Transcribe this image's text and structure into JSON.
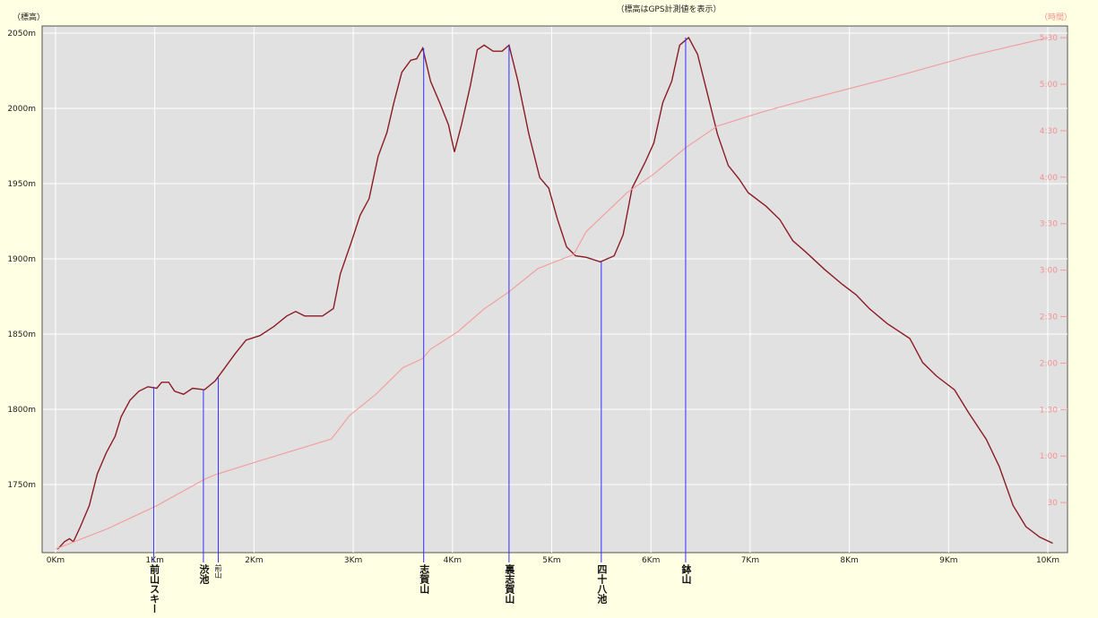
{
  "chart_data": {
    "type": "line",
    "title": "（標高はGPS計測値を表示）",
    "ylabel": "（標高）",
    "y2label": "（時間）",
    "xlim": [
      0,
      10.2
    ],
    "ylim": [
      1706,
      2055
    ],
    "y2lim": [
      0,
      340
    ],
    "grid": true,
    "x_ticks": [
      "0Km",
      "1Km",
      "2Km",
      "3Km",
      "4Km",
      "5Km",
      "6Km",
      "7Km",
      "8Km",
      "9Km",
      "10Km"
    ],
    "y_ticks": [
      {
        "value": 1750,
        "label": "1750m"
      },
      {
        "value": 1800,
        "label": "1800m"
      },
      {
        "value": 1850,
        "label": "1850m"
      },
      {
        "value": 1900,
        "label": "1900m"
      },
      {
        "value": 1950,
        "label": "1950m"
      },
      {
        "value": 2000,
        "label": "2000m"
      },
      {
        "value": 2050,
        "label": "2050m"
      }
    ],
    "y2_ticks": [
      {
        "value": 30,
        "label": "30"
      },
      {
        "value": 60,
        "label": "1:00"
      },
      {
        "value": 90,
        "label": "1:30"
      },
      {
        "value": 120,
        "label": "2:00"
      },
      {
        "value": 150,
        "label": "2:30"
      },
      {
        "value": 180,
        "label": "3:00"
      },
      {
        "value": 210,
        "label": "3:30"
      },
      {
        "value": 240,
        "label": "4:00"
      },
      {
        "value": 270,
        "label": "4:30"
      },
      {
        "value": 300,
        "label": "5:00"
      },
      {
        "value": 330,
        "label": "5:30"
      }
    ],
    "colors": {
      "elevation": "#8b1c24",
      "time": "#f49a9a",
      "marker": "#3030ff",
      "plot_bg": "#e1e1e1",
      "grid": "#ffffff"
    },
    "series": [
      {
        "axis": "left",
        "x": [
          0.02,
          0.09,
          0.14,
          0.18,
          0.25,
          0.34,
          0.42,
          0.51,
          0.6,
          0.66,
          0.75,
          0.84,
          0.93,
          1.02,
          1.07,
          1.14,
          1.2,
          1.29,
          1.38,
          1.5,
          1.61,
          1.7,
          1.81,
          1.92,
          2.06,
          2.2,
          2.33,
          2.42,
          2.51,
          2.69,
          2.8,
          2.87,
          2.98,
          3.07,
          3.16,
          3.25,
          3.34,
          3.41,
          3.49,
          3.58,
          3.64,
          3.7,
          3.78,
          3.87,
          3.96,
          4.02,
          4.09,
          4.18,
          4.25,
          4.32,
          4.41,
          4.5,
          4.57,
          4.66,
          4.77,
          4.88,
          4.97,
          5.06,
          5.15,
          5.24,
          5.35,
          5.49,
          5.63,
          5.72,
          5.81,
          5.94,
          6.03,
          6.12,
          6.21,
          6.29,
          6.38,
          6.47,
          6.58,
          6.67,
          6.78,
          6.89,
          6.98,
          7.16,
          7.3,
          7.43,
          7.57,
          7.75,
          7.93,
          8.07,
          8.2,
          8.38,
          8.61,
          8.74,
          8.88,
          9.06,
          9.2,
          9.38,
          9.51,
          9.65,
          9.78,
          9.92,
          10.05
        ],
        "y": [
          1707,
          1712,
          1714,
          1712,
          1722,
          1736,
          1757,
          1771,
          1782,
          1795,
          1806,
          1812,
          1815,
          1814,
          1818,
          1818,
          1812,
          1810,
          1814,
          1813,
          1819,
          1827,
          1837,
          1846,
          1849,
          1855,
          1862,
          1865,
          1862,
          1862,
          1867,
          1890,
          1911,
          1929,
          1940,
          1968,
          1984,
          2004,
          2024,
          2032,
          2033,
          2040,
          2018,
          2004,
          1989,
          1971,
          1989,
          2015,
          2039,
          2042,
          2038,
          2038,
          2042,
          2018,
          1983,
          1954,
          1947,
          1926,
          1908,
          1902,
          1901,
          1898,
          1902,
          1916,
          1947,
          1964,
          1977,
          2004,
          2018,
          2042,
          2047,
          2036,
          2007,
          1983,
          1962,
          1953,
          1944,
          1935,
          1926,
          1912,
          1904,
          1893,
          1883,
          1876,
          1867,
          1857,
          1847,
          1831,
          1822,
          1813,
          1798,
          1780,
          1762,
          1736,
          1722,
          1715,
          1711
        ]
      },
      {
        "axis": "right",
        "x": [
          0,
          0.52,
          1.02,
          1.5,
          1.61,
          2.06,
          2.78,
          2.96,
          3.23,
          3.5,
          3.7,
          3.78,
          4.05,
          4.32,
          4.57,
          4.86,
          5.22,
          5.35,
          5.76,
          6.03,
          6.35,
          6.67,
          7.12,
          7.57,
          8.47,
          9.2,
          10.0
        ],
        "y": [
          0,
          13,
          28,
          45,
          48,
          57,
          71,
          86,
          100,
          117,
          123,
          129,
          140,
          155,
          166,
          181,
          190,
          205,
          230,
          242,
          259,
          273,
          282,
          290,
          305,
          318,
          330
        ]
      }
    ],
    "markers": [
      {
        "x": 0.99,
        "label": "前山スキー",
        "elev": 1815
      },
      {
        "x": 1.49,
        "label": "渋池",
        "elev": 1813
      },
      {
        "x": 1.64,
        "label": "前山",
        "elev": 1821,
        "small": true
      },
      {
        "x": 3.71,
        "label": "志賀山",
        "elev": 2040
      },
      {
        "x": 4.57,
        "label": "裏志賀山",
        "elev": 2042
      },
      {
        "x": 5.5,
        "label": "四十八池",
        "elev": 1898
      },
      {
        "x": 6.35,
        "label": "鉢山",
        "elev": 2047
      }
    ]
  }
}
